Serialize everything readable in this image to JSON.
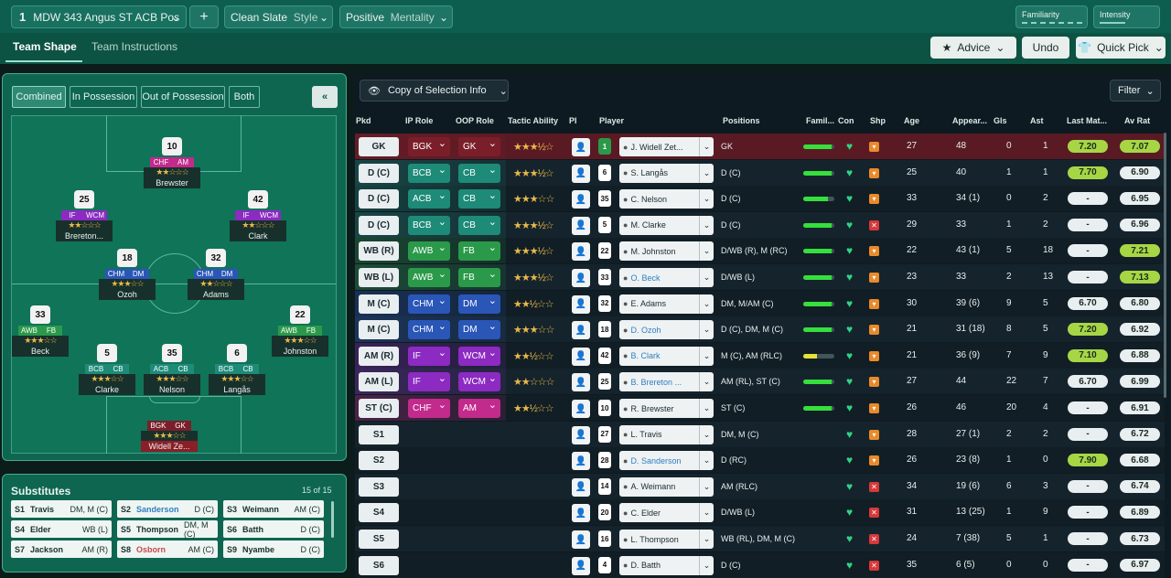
{
  "topbar": {
    "tactic_num": "1",
    "tactic_name": "MDW 343 Angus ST ACB Pos",
    "add": "+",
    "style_value": "Clean Slate",
    "style_label": "Style",
    "mentality_value": "Positive",
    "mentality_label": "Mentality",
    "familiarity": "Familiarity",
    "intensity": "Intensity"
  },
  "tabs": {
    "team_shape": "Team Shape",
    "team_instructions": "Team Instructions"
  },
  "actions": {
    "advice": "Advice",
    "undo": "Undo",
    "quick_pick": "Quick Pick"
  },
  "pitch_filters": {
    "combined": "Combined",
    "in_possession": "In Possession",
    "out_of_possession": "Out of Possession",
    "both": "Both",
    "collapse": "«"
  },
  "pitch_players": [
    {
      "num": "10",
      "r1": "CHF",
      "r2": "AM",
      "stars": "★★☆☆☆",
      "name": "Brewster"
    },
    {
      "num": "25",
      "r1": "IF",
      "r2": "WCM",
      "stars": "★★☆☆☆",
      "name": "Brereton..."
    },
    {
      "num": "42",
      "r1": "IF",
      "r2": "WCM",
      "stars": "★★☆☆☆",
      "name": "Clark"
    },
    {
      "num": "18",
      "r1": "CHM",
      "r2": "DM",
      "stars": "★★★☆☆",
      "name": "Ozoh"
    },
    {
      "num": "32",
      "r1": "CHM",
      "r2": "DM",
      "stars": "★★☆☆☆",
      "name": "Adams"
    },
    {
      "num": "33",
      "r1": "AWB",
      "r2": "FB",
      "stars": "★★★☆☆",
      "name": "Beck"
    },
    {
      "num": "22",
      "r1": "AWB",
      "r2": "FB",
      "stars": "★★★☆☆",
      "name": "Johnston"
    },
    {
      "num": "5",
      "r1": "BCB",
      "r2": "CB",
      "stars": "★★★☆☆",
      "name": "Clarke"
    },
    {
      "num": "35",
      "r1": "ACB",
      "r2": "CB",
      "stars": "★★★☆☆",
      "name": "Nelson"
    },
    {
      "num": "6",
      "r1": "BCB",
      "r2": "CB",
      "stars": "★★★☆☆",
      "name": "Langås"
    },
    {
      "num": "",
      "r1": "BGK",
      "r2": "GK",
      "stars": "★★★☆☆",
      "name": "Widell Ze..."
    }
  ],
  "subs": {
    "title": "Substitutes",
    "count": "15 of 15",
    "items": [
      {
        "slot": "S1",
        "name": "Travis",
        "pos": "DM, M (C)",
        "hl": false
      },
      {
        "slot": "S2",
        "name": "Sanderson",
        "pos": "D (C)",
        "hl": true
      },
      {
        "slot": "S3",
        "name": "Weimann",
        "pos": "AM (C)",
        "hl": false
      },
      {
        "slot": "S4",
        "name": "Elder",
        "pos": "WB (L)",
        "hl": false
      },
      {
        "slot": "S5",
        "name": "Thompson",
        "pos": "DM, M (C)",
        "hl": false
      },
      {
        "slot": "S6",
        "name": "Batth",
        "pos": "D (C)",
        "hl": false
      },
      {
        "slot": "S7",
        "name": "Jackson",
        "pos": "AM (R)",
        "hl": false
      },
      {
        "slot": "S8",
        "name": "Osborn",
        "pos": "AM (C)",
        "red": true
      },
      {
        "slot": "S9",
        "name": "Nyambe",
        "pos": "D (C)",
        "hl": false
      }
    ]
  },
  "table": {
    "copy_btn": "Copy of Selection Info",
    "filter": "Filter",
    "headers": [
      "Pkd",
      "IP Role",
      "OOP Role",
      "Tactic Ability",
      "PI",
      "Player",
      "Positions",
      "Famil...",
      "Con",
      "Shp",
      "Age",
      "Appear...",
      "Gls",
      "Ast",
      "Last Mat...",
      "Av Rat"
    ],
    "rows": [
      {
        "pkd": "GK",
        "ip": "BGK",
        "oop": "GK",
        "stars": "★★★½☆",
        "num": "1",
        "player": "J. Widell Zet...",
        "pos": "GK",
        "fam": 0.9,
        "shp": "ok",
        "age": "27",
        "apps": "48",
        "gls": "0",
        "ast": "1",
        "last": "7.20",
        "av": "7.07",
        "lastc": "#a7d645",
        "avc": "#a7d645"
      },
      {
        "pkd": "D (C)",
        "ip": "BCB",
        "oop": "CB",
        "stars": "★★★½☆",
        "num": "6",
        "player": "S. Langås",
        "pos": "D (C)",
        "fam": 0.9,
        "shp": "ok",
        "age": "25",
        "apps": "40",
        "gls": "1",
        "ast": "1",
        "last": "7.70",
        "av": "6.90",
        "lastc": "#a7d645",
        "avc": "#e9eef0"
      },
      {
        "pkd": "D (C)",
        "ip": "ACB",
        "oop": "CB",
        "stars": "★★★☆☆",
        "num": "35",
        "player": "C. Nelson",
        "pos": "D (C)",
        "fam": 0.8,
        "shp": "ok",
        "age": "33",
        "apps": "34 (1)",
        "gls": "0",
        "ast": "2",
        "last": "-",
        "av": "6.95",
        "lastc": "#e9eef0",
        "avc": "#e9eef0"
      },
      {
        "pkd": "D (C)",
        "ip": "BCB",
        "oop": "CB",
        "stars": "★★★½☆",
        "num": "5",
        "player": "M. Clarke",
        "pos": "D (C)",
        "fam": 0.9,
        "shp": "bad",
        "age": "29",
        "apps": "33",
        "gls": "1",
        "ast": "2",
        "last": "-",
        "av": "6.96",
        "lastc": "#e9eef0",
        "avc": "#e9eef0"
      },
      {
        "pkd": "WB (R)",
        "ip": "AWB",
        "oop": "FB",
        "stars": "★★★½☆",
        "num": "22",
        "player": "M. Johnston",
        "pos": "D/WB (R), M (RC)",
        "fam": 0.9,
        "shp": "ok",
        "age": "22",
        "apps": "43 (1)",
        "gls": "5",
        "ast": "18",
        "last": "-",
        "av": "7.21",
        "lastc": "#e9eef0",
        "avc": "#a7d645"
      },
      {
        "pkd": "WB (L)",
        "ip": "AWB",
        "oop": "FB",
        "stars": "★★★½☆",
        "num": "33",
        "player": "O. Beck",
        "pos": "D/WB (L)",
        "fam": 0.9,
        "shp": "ok",
        "age": "23",
        "apps": "33",
        "gls": "2",
        "ast": "13",
        "last": "-",
        "av": "7.13",
        "lastc": "#e9eef0",
        "avc": "#a7d645",
        "blue": true
      },
      {
        "pkd": "M (C)",
        "ip": "CHM",
        "oop": "DM",
        "stars": "★★½☆☆",
        "num": "32",
        "player": "E. Adams",
        "pos": "DM, M/AM (C)",
        "fam": 0.9,
        "shp": "ok",
        "age": "30",
        "apps": "39 (6)",
        "gls": "9",
        "ast": "5",
        "last": "6.70",
        "av": "6.80",
        "lastc": "#e9eef0",
        "avc": "#e9eef0"
      },
      {
        "pkd": "M (C)",
        "ip": "CHM",
        "oop": "DM",
        "stars": "★★★☆☆",
        "num": "18",
        "player": "D. Ozoh",
        "pos": "D (C), DM, M (C)",
        "fam": 0.9,
        "shp": "ok",
        "age": "21",
        "apps": "31 (18)",
        "gls": "8",
        "ast": "5",
        "last": "7.20",
        "av": "6.92",
        "lastc": "#a7d645",
        "avc": "#e9eef0",
        "blue": true
      },
      {
        "pkd": "AM (R)",
        "ip": "IF",
        "oop": "WCM",
        "stars": "★★½☆☆",
        "num": "42",
        "player": "B. Clark",
        "pos": "M (C), AM (RLC)",
        "fam": 0.45,
        "shp": "ok",
        "age": "21",
        "apps": "36 (9)",
        "gls": "7",
        "ast": "9",
        "last": "7.10",
        "av": "6.88",
        "lastc": "#a7d645",
        "avc": "#e9eef0",
        "blue": true,
        "famc": "#e7e23a"
      },
      {
        "pkd": "AM (L)",
        "ip": "IF",
        "oop": "WCM",
        "stars": "★★☆☆☆",
        "num": "25",
        "player": "B. Brereton ...",
        "pos": "AM (RL), ST (C)",
        "fam": 0.9,
        "shp": "ok",
        "age": "27",
        "apps": "44",
        "gls": "22",
        "ast": "7",
        "last": "6.70",
        "av": "6.99",
        "lastc": "#e9eef0",
        "avc": "#e9eef0",
        "blue": true
      },
      {
        "pkd": "ST (C)",
        "ip": "CHF",
        "oop": "AM",
        "stars": "★★½☆☆",
        "num": "10",
        "player": "R. Brewster",
        "pos": "ST (C)",
        "fam": 0.9,
        "shp": "ok",
        "age": "26",
        "apps": "46",
        "gls": "20",
        "ast": "4",
        "last": "-",
        "av": "6.91",
        "lastc": "#e9eef0",
        "avc": "#e9eef0"
      },
      {
        "pkd": "S1",
        "num": "27",
        "player": "L. Travis",
        "pos": "DM, M (C)",
        "shp": "ok",
        "age": "28",
        "apps": "27 (1)",
        "gls": "2",
        "ast": "2",
        "last": "-",
        "av": "6.72",
        "lastc": "#e9eef0",
        "avc": "#e9eef0"
      },
      {
        "pkd": "S2",
        "num": "28",
        "player": "D. Sanderson",
        "pos": "D (RC)",
        "shp": "ok",
        "age": "26",
        "apps": "23 (8)",
        "gls": "1",
        "ast": "0",
        "last": "7.90",
        "av": "6.68",
        "lastc": "#a7d645",
        "avc": "#e9eef0",
        "blue": true
      },
      {
        "pkd": "S3",
        "num": "14",
        "player": "A. Weimann",
        "pos": "AM (RLC)",
        "shp": "bad",
        "age": "34",
        "apps": "19 (6)",
        "gls": "6",
        "ast": "3",
        "last": "-",
        "av": "6.74",
        "lastc": "#e9eef0",
        "avc": "#e9eef0"
      },
      {
        "pkd": "S4",
        "num": "20",
        "player": "C. Elder",
        "pos": "D/WB (L)",
        "shp": "bad",
        "age": "31",
        "apps": "13 (25)",
        "gls": "1",
        "ast": "9",
        "last": "-",
        "av": "6.89",
        "lastc": "#e9eef0",
        "avc": "#e9eef0"
      },
      {
        "pkd": "S5",
        "num": "16",
        "player": "L. Thompson",
        "pos": "WB (RL), DM, M (C)",
        "shp": "bad",
        "age": "24",
        "apps": "7 (38)",
        "gls": "5",
        "ast": "1",
        "last": "-",
        "av": "6.73",
        "lastc": "#e9eef0",
        "avc": "#e9eef0"
      },
      {
        "pkd": "S6",
        "num": "4",
        "player": "D. Batth",
        "pos": "D (C)",
        "shp": "bad",
        "age": "35",
        "apps": "6 (5)",
        "gls": "0",
        "ast": "0",
        "last": "-",
        "av": "6.97",
        "lastc": "#e9eef0",
        "avc": "#e9eef0"
      }
    ]
  },
  "colors": {
    "accent": "#0d5e4f",
    "gk": "#7a1f2a",
    "def": "#1e8a78",
    "wb": "#2a9a4a",
    "mid": "#2a56b8",
    "am": "#8c2ac2",
    "st": "#c22a8c"
  }
}
